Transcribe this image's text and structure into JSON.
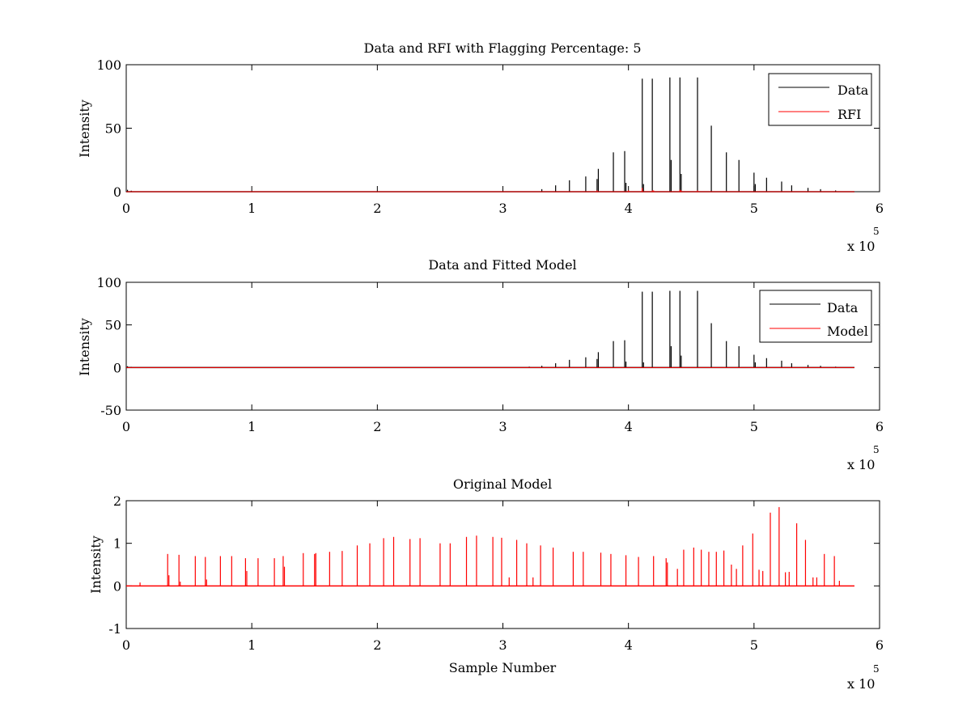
{
  "chart_data": [
    {
      "type": "line",
      "title": "Data and RFI with Flagging Percentage: 5",
      "xlabel": "",
      "ylabel": "Intensity",
      "xlim": [
        0,
        6
      ],
      "ylim": [
        0,
        100
      ],
      "xticks": [
        "0",
        "1",
        "2",
        "3",
        "4",
        "5",
        "6"
      ],
      "yticks": [
        0,
        50,
        100
      ],
      "x_exponent_base": "x 10",
      "x_exponent_power": "5",
      "x_scale_note": "sample numbers in units of 1e5",
      "legend_position": "top-right",
      "series": [
        {
          "name": "Data",
          "color": "#000000",
          "style": "spikes",
          "x": [
            0.01,
            0.04,
            3.31,
            3.42,
            3.53,
            3.66,
            3.75,
            3.76,
            3.88,
            3.97,
            3.98,
            4.11,
            4.12,
            4.19,
            4.33,
            4.34,
            4.41,
            4.42,
            4.55,
            4.66,
            4.78,
            4.88,
            5.0,
            5.01,
            5.1,
            5.22,
            5.3,
            5.43,
            5.53,
            5.65
          ],
          "values": [
            1.5,
            0.8,
            2,
            5,
            9,
            12,
            10,
            18,
            31,
            32,
            7,
            89,
            6,
            89,
            90,
            25,
            90,
            14,
            90,
            52,
            31,
            25,
            15,
            6,
            11,
            8,
            5,
            3,
            2,
            1
          ]
        },
        {
          "name": "RFI",
          "color": "#ff0000",
          "style": "spikes",
          "x": [
            3.75,
            4.0,
            4.11,
            4.19,
            4.2,
            4.41,
            4.42,
            4.55
          ],
          "values": [
            1,
            1,
            3,
            1,
            1,
            1.5,
            1,
            1
          ]
        }
      ]
    },
    {
      "type": "line",
      "title": "Data and Fitted Model",
      "xlabel": "",
      "ylabel": "Intensity",
      "xlim": [
        0,
        6
      ],
      "ylim": [
        -50,
        100
      ],
      "xticks": [
        "0",
        "1",
        "2",
        "3",
        "4",
        "5",
        "6"
      ],
      "yticks": [
        -50,
        0,
        50,
        100
      ],
      "x_exponent_base": "x 10",
      "x_exponent_power": "5",
      "x_scale_note": "sample numbers in units of 1e5",
      "legend_position": "top-right",
      "series": [
        {
          "name": "Data",
          "color": "#000000",
          "style": "spikes",
          "x": [
            0.01,
            0.04,
            3.21,
            3.31,
            3.42,
            3.53,
            3.66,
            3.75,
            3.76,
            3.88,
            3.97,
            3.98,
            4.11,
            4.12,
            4.19,
            4.33,
            4.34,
            4.41,
            4.42,
            4.55,
            4.66,
            4.78,
            4.88,
            5.0,
            5.01,
            5.1,
            5.22,
            5.3,
            5.43,
            5.53,
            5.65
          ],
          "values": [
            1.5,
            0.8,
            1,
            2,
            5,
            9,
            12,
            10,
            18,
            31,
            32,
            7,
            89,
            6,
            89,
            90,
            25,
            90,
            14,
            90,
            52,
            31,
            25,
            15,
            6,
            11,
            8,
            5,
            3,
            2,
            1
          ]
        },
        {
          "name": "Model",
          "color": "#ff0000",
          "style": "flat",
          "x": [
            0,
            5.8
          ],
          "values": [
            0,
            0
          ]
        }
      ]
    },
    {
      "type": "line",
      "title": "Original Model",
      "xlabel": "Sample Number",
      "ylabel": "Intensity",
      "xlim": [
        0,
        6
      ],
      "ylim": [
        -1,
        2
      ],
      "xticks": [
        "0",
        "1",
        "2",
        "3",
        "4",
        "5",
        "6"
      ],
      "yticks": [
        -1,
        0,
        1,
        2
      ],
      "x_exponent_base": "x 10",
      "x_exponent_power": "5",
      "x_scale_note": "sample numbers in units of 1e5",
      "legend_position": "none",
      "series": [
        {
          "name": "",
          "color": "#ff0000",
          "style": "spikes",
          "x": [
            0.11,
            0.33,
            0.34,
            0.42,
            0.43,
            0.55,
            0.63,
            0.64,
            0.75,
            0.84,
            0.95,
            0.96,
            1.05,
            1.18,
            1.25,
            1.26,
            1.41,
            1.5,
            1.51,
            1.62,
            1.72,
            1.84,
            1.94,
            2.05,
            2.13,
            2.26,
            2.34,
            2.5,
            2.58,
            2.71,
            2.79,
            2.92,
            2.99,
            3.05,
            3.11,
            3.19,
            3.24,
            3.3,
            3.4,
            3.56,
            3.64,
            3.78,
            3.86,
            3.98,
            4.08,
            4.2,
            4.3,
            4.31,
            4.39,
            4.44,
            4.52,
            4.58,
            4.64,
            4.7,
            4.76,
            4.82,
            4.86,
            4.91,
            4.99,
            5.04,
            5.07,
            5.13,
            5.2,
            5.25,
            5.28,
            5.34,
            5.41,
            5.47,
            5.5,
            5.56,
            5.64,
            5.68
          ],
          "values": [
            0.08,
            0.75,
            0.25,
            0.73,
            0.1,
            0.7,
            0.68,
            0.15,
            0.7,
            0.7,
            0.65,
            0.35,
            0.65,
            0.65,
            0.7,
            0.45,
            0.77,
            0.75,
            0.77,
            0.8,
            0.82,
            0.95,
            1.0,
            1.12,
            1.15,
            1.1,
            1.12,
            1.0,
            1.0,
            1.15,
            1.18,
            1.15,
            1.13,
            0.2,
            1.08,
            1.0,
            0.2,
            0.95,
            0.9,
            0.8,
            0.8,
            0.78,
            0.75,
            0.72,
            0.68,
            0.7,
            0.65,
            0.55,
            0.4,
            0.85,
            0.9,
            0.85,
            0.8,
            0.8,
            0.83,
            0.5,
            0.4,
            0.95,
            1.23,
            0.38,
            0.35,
            1.72,
            1.85,
            0.32,
            0.33,
            1.47,
            1.08,
            0.2,
            0.2,
            0.75,
            0.7,
            0.12
          ]
        }
      ]
    }
  ]
}
